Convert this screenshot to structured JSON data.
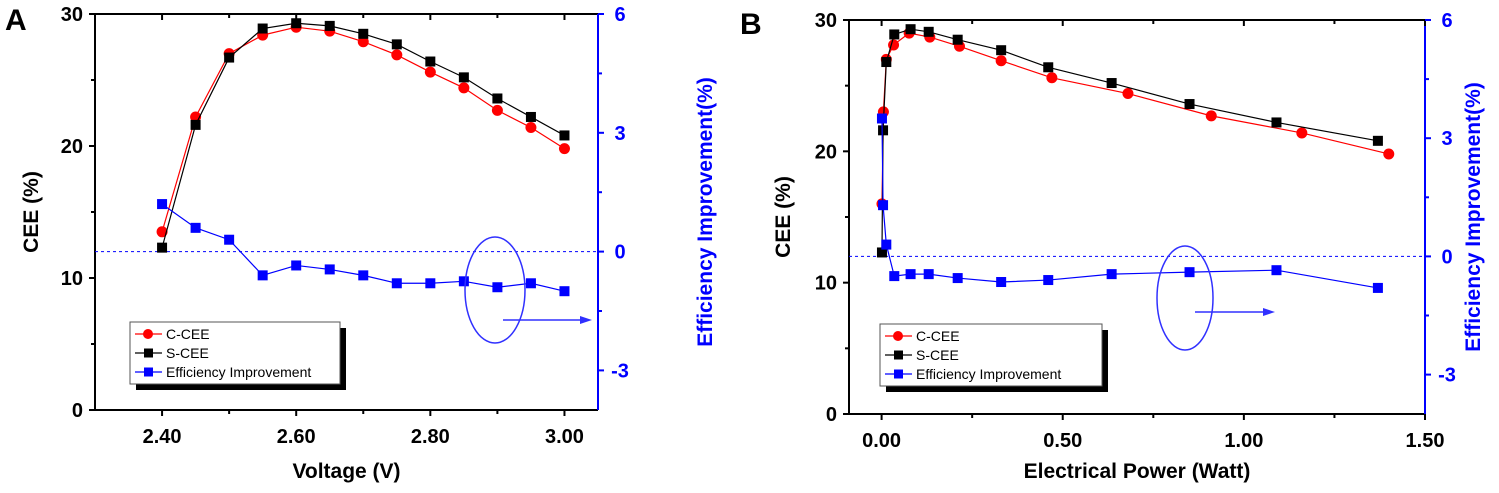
{
  "chart_data": [
    {
      "panel_label": "A",
      "type": "line",
      "xlabel": "Voltage (V)",
      "ylabel": "CEE (%)",
      "ylabel_right": "Efficiency Improvement(%)",
      "xlim": [
        2.3,
        3.05
      ],
      "ylim": [
        0,
        30
      ],
      "ylim_right": [
        -4,
        6
      ],
      "xticks": [
        "2.40",
        "2.60",
        "2.80",
        "3.00"
      ],
      "xtick_values": [
        2.4,
        2.6,
        2.8,
        3.0
      ],
      "yticks": [
        0,
        10,
        20,
        30
      ],
      "yticks_right": [
        -3,
        0,
        3,
        6
      ],
      "series": [
        {
          "name": "C-CEE",
          "axis": "left",
          "color": "#ff0000",
          "marker": "circle",
          "x": [
            2.4,
            2.45,
            2.5,
            2.55,
            2.6,
            2.65,
            2.7,
            2.75,
            2.8,
            2.85,
            2.9,
            2.95,
            3.0
          ],
          "y": [
            13.5,
            22.2,
            27.0,
            28.4,
            29.0,
            28.7,
            27.9,
            26.9,
            25.6,
            24.4,
            22.7,
            21.4,
            19.8
          ]
        },
        {
          "name": "S-CEE",
          "axis": "left",
          "color": "#000000",
          "marker": "square",
          "x": [
            2.4,
            2.45,
            2.5,
            2.55,
            2.6,
            2.65,
            2.7,
            2.75,
            2.8,
            2.85,
            2.9,
            2.95,
            3.0
          ],
          "y": [
            12.3,
            21.6,
            26.7,
            28.9,
            29.3,
            29.1,
            28.5,
            27.7,
            26.4,
            25.2,
            23.6,
            22.2,
            20.8
          ]
        },
        {
          "name": "Efficiency Improvement",
          "axis": "right",
          "color": "#0000ff",
          "marker": "square",
          "x": [
            2.4,
            2.45,
            2.5,
            2.55,
            2.6,
            2.65,
            2.7,
            2.75,
            2.8,
            2.85,
            2.9,
            2.95,
            3.0
          ],
          "y": [
            1.2,
            0.6,
            0.3,
            -0.6,
            -0.35,
            -0.45,
            -0.6,
            -0.8,
            -0.8,
            -0.75,
            -0.9,
            -0.8,
            -1.0
          ]
        }
      ],
      "reference_line_right": 0,
      "legend_placement": "bottom-left"
    },
    {
      "panel_label": "B",
      "type": "line",
      "xlabel": "Electrical Power (Watt)",
      "ylabel": "CEE (%)",
      "ylabel_right": "Efficiency Improvement(%)",
      "xlim": [
        -0.09,
        1.5
      ],
      "ylim": [
        0,
        30
      ],
      "ylim_right": [
        -4,
        6
      ],
      "xticks": [
        "0.00",
        "0.50",
        "1.00",
        "1.50"
      ],
      "xtick_values": [
        0,
        0.5,
        1.0,
        1.5
      ],
      "yticks": [
        0,
        10,
        20,
        30
      ],
      "yticks_right": [
        -3,
        0,
        3,
        6
      ],
      "series": [
        {
          "name": "C-CEE",
          "axis": "left",
          "color": "#ff0000",
          "marker": "circle",
          "x": [
            0.001,
            0.005,
            0.013,
            0.033,
            0.076,
            0.133,
            0.215,
            0.33,
            0.47,
            0.68,
            0.91,
            1.16,
            1.4
          ],
          "y": [
            16.0,
            23.0,
            27.0,
            28.1,
            29.0,
            28.7,
            28.0,
            26.9,
            25.6,
            24.4,
            22.7,
            21.4,
            19.8
          ]
        },
        {
          "name": "S-CEE",
          "axis": "left",
          "color": "#000000",
          "marker": "square",
          "x": [
            0.001,
            0.004,
            0.013,
            0.035,
            0.08,
            0.13,
            0.21,
            0.33,
            0.46,
            0.635,
            0.85,
            1.09,
            1.37
          ],
          "y": [
            12.3,
            21.6,
            26.8,
            28.9,
            29.3,
            29.1,
            28.5,
            27.7,
            26.4,
            25.2,
            23.6,
            22.2,
            20.8
          ]
        },
        {
          "name": "Efficiency Improvement",
          "axis": "right",
          "color": "#0000ff",
          "marker": "square",
          "x": [
            0.001,
            0.004,
            0.013,
            0.035,
            0.08,
            0.13,
            0.21,
            0.33,
            0.46,
            0.635,
            0.85,
            1.09,
            1.37
          ],
          "y": [
            3.5,
            1.3,
            0.3,
            -0.5,
            -0.45,
            -0.45,
            -0.55,
            -0.65,
            -0.6,
            -0.45,
            -0.4,
            -0.35,
            -0.8
          ]
        }
      ],
      "reference_line_right": 0,
      "legend_placement": "bottom-left"
    }
  ]
}
